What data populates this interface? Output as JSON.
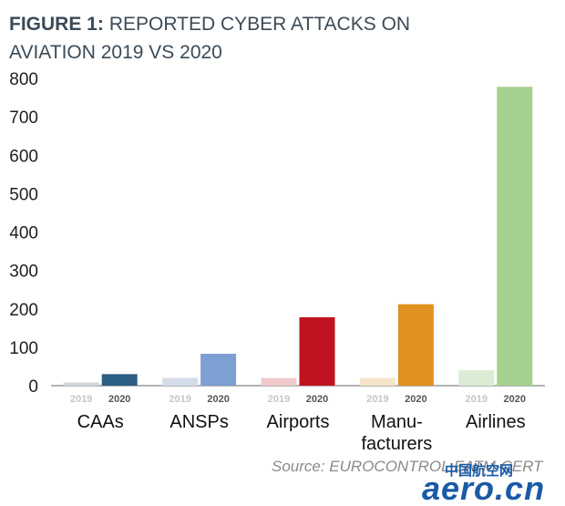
{
  "title": {
    "bold_part": "FIGURE 1:",
    "line1_rest": "REPORTED CYBER ATTACKS ON",
    "line2": "AVIATION 2019 VS 2020"
  },
  "source": "Source: EUROCONTROL EATM-CERT",
  "watermark": {
    "cn": "中国航空网",
    "en": "aero.cn"
  },
  "chart_data": {
    "type": "bar",
    "title": "FIGURE 1: REPORTED CYBER ATTACKS ON AVIATION 2019 VS 2020",
    "categories": [
      {
        "lines": [
          "CAAs"
        ],
        "y2019": 8,
        "y2020": 30,
        "color2019": "#cfd6dc",
        "color2020": "#2b5f86"
      },
      {
        "lines": [
          "ANSPs"
        ],
        "y2019": 20,
        "y2020": 83,
        "color2019": "#d4dcea",
        "color2020": "#7d9fd2"
      },
      {
        "lines": [
          "Airports"
        ],
        "y2019": 20,
        "y2020": 178,
        "color2019": "#f0c9cb",
        "color2020": "#c0121f"
      },
      {
        "lines": [
          "Manu-",
          "facturers"
        ],
        "y2019": 20,
        "y2020": 212,
        "color2019": "#f3e3c8",
        "color2020": "#e0911f"
      },
      {
        "lines": [
          "Airlines"
        ],
        "y2019": 40,
        "y2020": 778,
        "color2019": "#dcebd3",
        "color2020": "#a6d08f"
      }
    ],
    "series_labels": [
      "2019",
      "2020"
    ],
    "series_label_colors": [
      "#c6c6c6",
      "#555555"
    ],
    "yticks": [
      0,
      100,
      200,
      300,
      400,
      500,
      600,
      700,
      800
    ],
    "ylim": [
      0,
      800
    ],
    "grid": false
  }
}
